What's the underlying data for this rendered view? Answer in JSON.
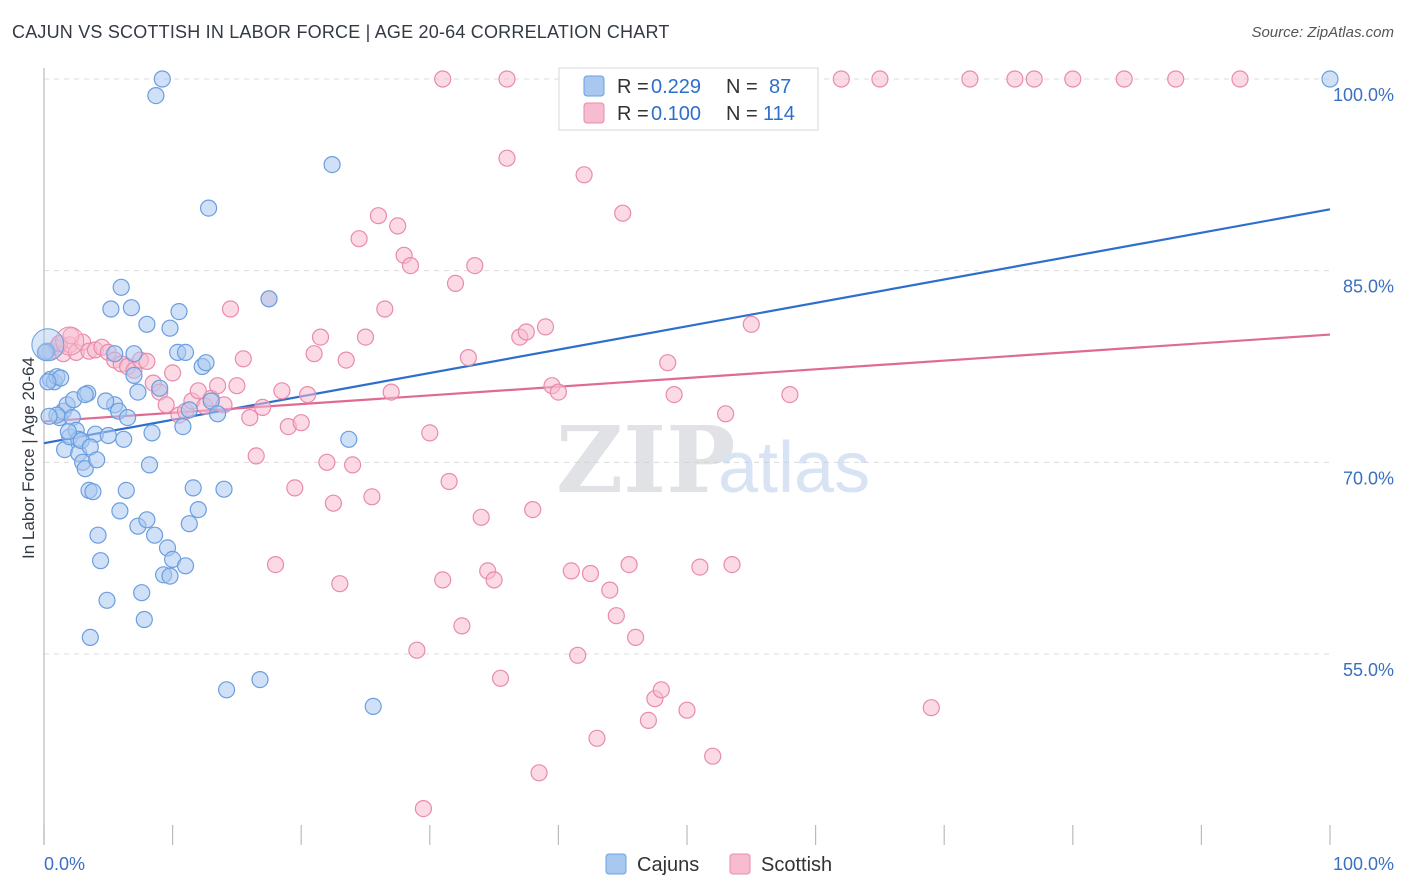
{
  "header": {
    "title": "CAJUN VS SCOTTISH IN LABOR FORCE | AGE 20-64 CORRELATION CHART",
    "source": "Source: ZipAtlas.com"
  },
  "watermark": {
    "zip": "ZIP",
    "atlas": "atlas"
  },
  "legend_box": {
    "rows": [
      {
        "r_label": "R = ",
        "r_value": "0.229",
        "n_label": "N = ",
        "n_value": "87"
      },
      {
        "r_label": "R = ",
        "r_value": "0.100",
        "n_label": "N = ",
        "n_value": "114"
      }
    ]
  },
  "bottom_legend": {
    "items": [
      "Cajuns",
      "Scottish"
    ]
  },
  "chart_data": {
    "type": "scatter",
    "title": "CAJUN VS SCOTTISH IN LABOR FORCE | AGE 20-64 CORRELATION CHART",
    "xlabel": "",
    "ylabel": "In Labor Force | Age 20-64",
    "xlim": [
      0,
      100
    ],
    "ylim": [
      40,
      102
    ],
    "x_tick_labels": [
      "0.0%",
      "100.0%"
    ],
    "y_ticks": [
      55,
      70,
      85,
      100
    ],
    "y_tick_labels": [
      "55.0%",
      "70.0%",
      "85.0%",
      "100.0%"
    ],
    "grid": true,
    "legend_position": "top-center",
    "colors": {
      "cajuns_fill": "#a9c8f0",
      "cajuns_stroke": "#6a9ee0",
      "cajuns_line": "#2f6fcc",
      "scottish_fill": "#f8bcd0",
      "scottish_stroke": "#e98bab",
      "scottish_line": "#e06a96",
      "tick_text": "#3b6fc4"
    },
    "series": [
      {
        "name": "Cajuns",
        "r": 0.229,
        "n": 87,
        "trend": {
          "x": [
            0,
            100
          ],
          "y": [
            71.5,
            89.8
          ]
        },
        "points": [
          [
            0.2,
            78.7
          ],
          [
            0.5,
            76.5
          ],
          [
            0.8,
            76.3
          ],
          [
            1.0,
            76.7
          ],
          [
            1.2,
            73.5
          ],
          [
            1.5,
            74.0
          ],
          [
            1.6,
            71.0
          ],
          [
            1.8,
            74.5
          ],
          [
            2.0,
            72.0
          ],
          [
            2.2,
            73.5
          ],
          [
            2.5,
            72.5
          ],
          [
            2.7,
            70.7
          ],
          [
            3.0,
            70.0
          ],
          [
            3.2,
            69.5
          ],
          [
            3.5,
            67.8
          ],
          [
            3.8,
            67.7
          ],
          [
            4.0,
            72.2
          ],
          [
            4.2,
            64.3
          ],
          [
            4.4,
            62.3
          ],
          [
            5.0,
            72.1
          ],
          [
            5.5,
            74.5
          ],
          [
            5.8,
            74.0
          ],
          [
            6.2,
            71.8
          ],
          [
            6.5,
            73.5
          ],
          [
            7.0,
            78.5
          ],
          [
            7.3,
            65.0
          ],
          [
            7.6,
            59.8
          ],
          [
            7.8,
            57.7
          ],
          [
            8.0,
            65.5
          ],
          [
            8.2,
            69.8
          ],
          [
            8.4,
            72.3
          ],
          [
            8.6,
            64.3
          ],
          [
            9.0,
            75.8
          ],
          [
            9.3,
            61.2
          ],
          [
            9.6,
            63.3
          ],
          [
            9.8,
            61.1
          ],
          [
            10.0,
            62.4
          ],
          [
            10.5,
            81.8
          ],
          [
            10.8,
            72.8
          ],
          [
            11.0,
            61.9
          ],
          [
            11.3,
            65.2
          ],
          [
            11.6,
            68.0
          ],
          [
            12.0,
            66.3
          ],
          [
            12.3,
            77.5
          ],
          [
            12.6,
            77.8
          ],
          [
            13.0,
            74.8
          ],
          [
            13.5,
            73.8
          ],
          [
            14.0,
            67.9
          ],
          [
            14.2,
            52.2
          ],
          [
            16.8,
            53.0
          ],
          [
            17.5,
            82.8
          ],
          [
            22.4,
            93.3
          ],
          [
            23.7,
            71.8
          ],
          [
            25.6,
            50.9
          ],
          [
            11.3,
            74.1
          ],
          [
            5.2,
            82.0
          ],
          [
            6.8,
            82.1
          ],
          [
            8.0,
            80.8
          ],
          [
            1.3,
            76.6
          ],
          [
            2.3,
            74.9
          ],
          [
            3.4,
            75.4
          ],
          [
            4.8,
            74.8
          ],
          [
            5.5,
            78.5
          ],
          [
            7.0,
            76.8
          ],
          [
            2.7,
            71.8
          ],
          [
            3.2,
            75.3
          ],
          [
            1.0,
            73.7
          ],
          [
            8.7,
            98.7
          ],
          [
            9.2,
            100.0
          ],
          [
            12.8,
            89.9
          ],
          [
            6.0,
            83.7
          ],
          [
            10.4,
            78.6
          ],
          [
            11.0,
            78.6
          ],
          [
            0.1,
            78.6
          ],
          [
            0.3,
            76.3
          ],
          [
            0.4,
            73.6
          ],
          [
            1.9,
            72.4
          ],
          [
            2.9,
            71.7
          ],
          [
            3.6,
            71.2
          ],
          [
            4.1,
            70.2
          ],
          [
            5.9,
            66.2
          ],
          [
            6.4,
            67.8
          ],
          [
            7.3,
            75.5
          ],
          [
            9.8,
            80.5
          ],
          [
            100.0,
            100.0
          ],
          [
            3.6,
            56.3
          ],
          [
            4.9,
            59.2
          ]
        ]
      },
      {
        "name": "Scottish",
        "r": 0.1,
        "n": 114,
        "trend": {
          "x": [
            0,
            100
          ],
          "y": [
            73.2,
            80.0
          ]
        },
        "points": [
          [
            0.5,
            78.7
          ],
          [
            1.0,
            79.0
          ],
          [
            1.5,
            78.5
          ],
          [
            2.0,
            79.2
          ],
          [
            2.5,
            78.6
          ],
          [
            3.0,
            79.4
          ],
          [
            3.5,
            78.7
          ],
          [
            4.0,
            78.8
          ],
          [
            4.5,
            79.0
          ],
          [
            5.0,
            78.6
          ],
          [
            5.5,
            78.0
          ],
          [
            6.0,
            77.7
          ],
          [
            6.5,
            77.5
          ],
          [
            7.0,
            77.2
          ],
          [
            7.5,
            78.0
          ],
          [
            8.0,
            77.9
          ],
          [
            8.5,
            76.2
          ],
          [
            9.0,
            75.5
          ],
          [
            9.5,
            74.5
          ],
          [
            10.0,
            77.0
          ],
          [
            10.5,
            73.7
          ],
          [
            11.0,
            74.0
          ],
          [
            11.5,
            74.8
          ],
          [
            12.0,
            75.6
          ],
          [
            12.5,
            74.4
          ],
          [
            13.0,
            75.0
          ],
          [
            13.5,
            76.0
          ],
          [
            14.0,
            74.5
          ],
          [
            14.5,
            82.0
          ],
          [
            15.0,
            76.0
          ],
          [
            15.5,
            78.1
          ],
          [
            16.0,
            73.5
          ],
          [
            16.5,
            70.5
          ],
          [
            17.0,
            74.3
          ],
          [
            17.5,
            82.8
          ],
          [
            18.0,
            62.0
          ],
          [
            18.5,
            75.6
          ],
          [
            19.0,
            72.8
          ],
          [
            19.5,
            68.0
          ],
          [
            20.0,
            73.1
          ],
          [
            20.5,
            75.3
          ],
          [
            21.0,
            78.5
          ],
          [
            21.5,
            79.8
          ],
          [
            22.0,
            70.0
          ],
          [
            22.5,
            66.8
          ],
          [
            23.0,
            60.5
          ],
          [
            23.5,
            78.0
          ],
          [
            24.0,
            69.8
          ],
          [
            24.5,
            87.5
          ],
          [
            25.0,
            79.8
          ],
          [
            25.5,
            67.3
          ],
          [
            26.0,
            89.3
          ],
          [
            26.5,
            82.0
          ],
          [
            27.0,
            75.5
          ],
          [
            27.5,
            88.5
          ],
          [
            28.0,
            86.2
          ],
          [
            28.5,
            85.4
          ],
          [
            29.0,
            55.3
          ],
          [
            29.5,
            42.9
          ],
          [
            30.0,
            72.3
          ],
          [
            31.0,
            60.8
          ],
          [
            31.5,
            68.5
          ],
          [
            32.0,
            84.0
          ],
          [
            32.5,
            57.2
          ],
          [
            33.0,
            78.2
          ],
          [
            33.5,
            85.4
          ],
          [
            34.0,
            65.7
          ],
          [
            34.5,
            61.5
          ],
          [
            35.0,
            60.8
          ],
          [
            35.5,
            53.1
          ],
          [
            36.0,
            93.8
          ],
          [
            37.0,
            79.8
          ],
          [
            37.5,
            80.2
          ],
          [
            38.0,
            66.3
          ],
          [
            38.5,
            45.7
          ],
          [
            39.0,
            80.6
          ],
          [
            39.5,
            76.0
          ],
          [
            40.0,
            75.5
          ],
          [
            41.0,
            61.5
          ],
          [
            41.5,
            54.9
          ],
          [
            42.0,
            92.5
          ],
          [
            42.5,
            61.3
          ],
          [
            43.0,
            48.4
          ],
          [
            44.0,
            60.0
          ],
          [
            44.5,
            58.0
          ],
          [
            45.0,
            89.5
          ],
          [
            45.5,
            62.0
          ],
          [
            46.0,
            56.3
          ],
          [
            47.0,
            49.8
          ],
          [
            47.5,
            51.5
          ],
          [
            48.0,
            52.2
          ],
          [
            48.5,
            77.8
          ],
          [
            49.0,
            75.3
          ],
          [
            50.0,
            50.6
          ],
          [
            51.0,
            61.8
          ],
          [
            52.0,
            47.0
          ],
          [
            53.0,
            73.8
          ],
          [
            53.5,
            62.0
          ],
          [
            55.0,
            80.8
          ],
          [
            58.0,
            75.3
          ],
          [
            69.0,
            50.8
          ],
          [
            72.0,
            100.0
          ],
          [
            77.0,
            100.0
          ],
          [
            80.0,
            100.0
          ],
          [
            84.0,
            100.0
          ],
          [
            88.0,
            100.0
          ],
          [
            93.0,
            100.0
          ],
          [
            31.0,
            100.0
          ],
          [
            36.0,
            100.0
          ],
          [
            62.0,
            100.0
          ],
          [
            65.0,
            100.0
          ],
          [
            75.5,
            100.0
          ],
          [
            1.2,
            79.3
          ],
          [
            2.1,
            79.9
          ]
        ]
      }
    ]
  }
}
